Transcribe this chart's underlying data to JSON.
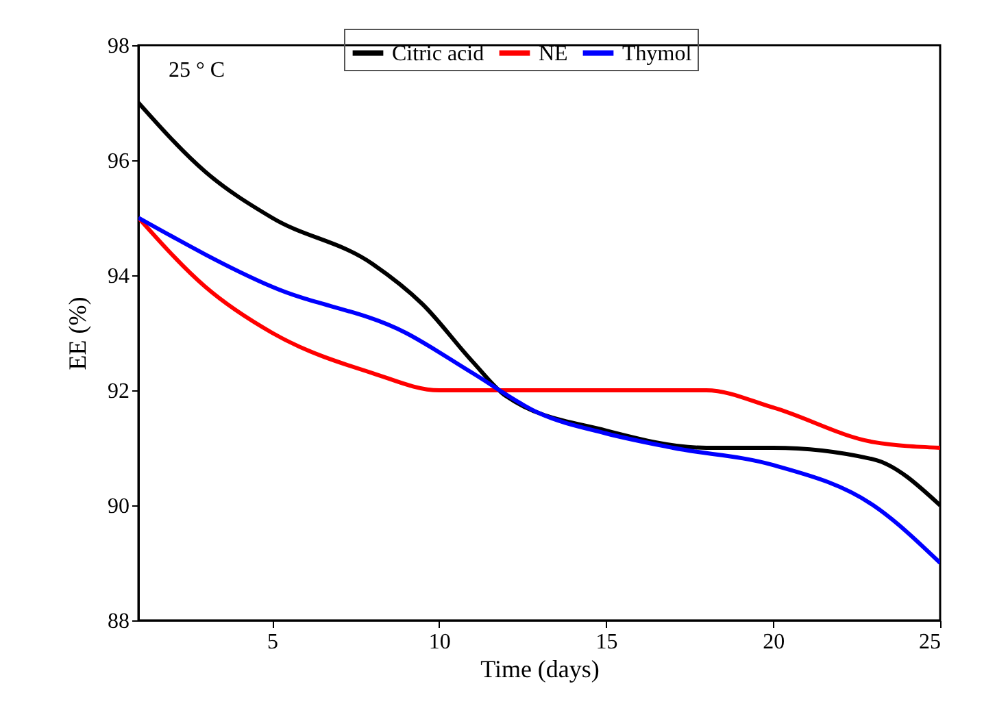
{
  "chart_data": {
    "type": "line",
    "xlabel": "Time (days)",
    "ylabel": "EE (%)",
    "annotations": [
      "25 ° C"
    ],
    "xlim": [
      1,
      25
    ],
    "xticks": [
      5,
      10,
      15,
      20,
      25
    ],
    "ylim": [
      88,
      98
    ],
    "yticks": [
      88,
      90,
      92,
      94,
      96,
      98
    ],
    "grid": false,
    "legend": "top",
    "marker": "none",
    "line_style": "solid",
    "series": [
      {
        "name": "Citric acid",
        "color": "#000000",
        "x": [
          1,
          3,
          5,
          8,
          9.5,
          11,
          12,
          15,
          18,
          20,
          23,
          25
        ],
        "values": [
          97,
          95.8,
          95,
          94.2,
          93.5,
          92.5,
          91.9,
          91.3,
          91,
          91,
          90.8,
          90
        ]
      },
      {
        "name": "NE",
        "color": "#ff0000",
        "x": [
          1,
          3,
          5,
          8,
          10,
          12,
          18,
          20,
          23,
          25
        ],
        "values": [
          95,
          93.8,
          93,
          92.3,
          92,
          92,
          92,
          91.7,
          91.1,
          91
        ]
      },
      {
        "name": "Thymol",
        "color": "#0000ff",
        "x": [
          1,
          5,
          9,
          11,
          13,
          15,
          17,
          20,
          23,
          25
        ],
        "values": [
          95,
          93.8,
          93,
          92.3,
          91.6,
          91.25,
          91,
          90.7,
          90,
          89
        ]
      }
    ]
  }
}
